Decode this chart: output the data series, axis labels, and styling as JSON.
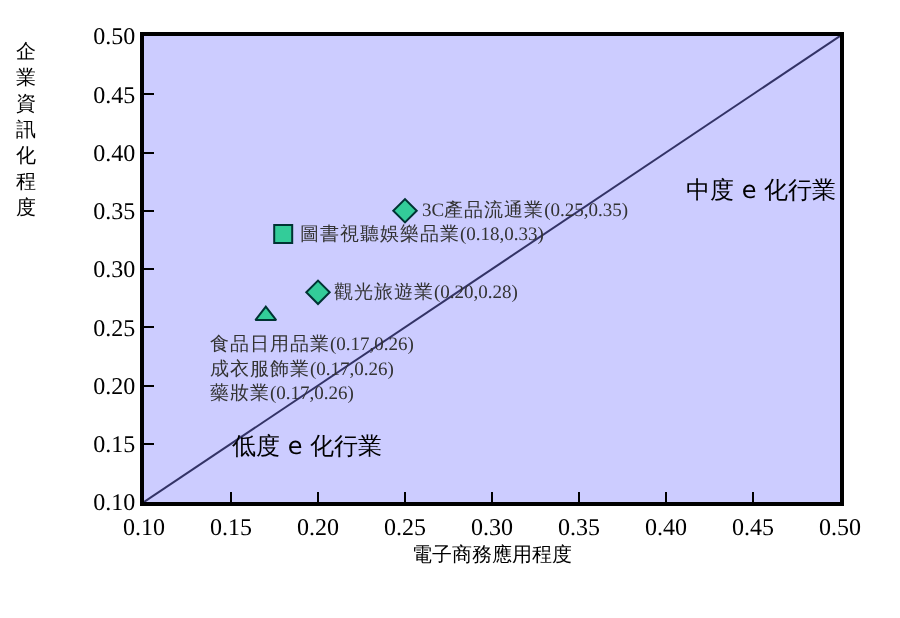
{
  "chart_data": {
    "type": "scatter",
    "xlabel": "電子商務應用程度",
    "ylabel": "企業資訊化程度",
    "xlim": [
      0.1,
      0.5
    ],
    "xticks": [
      {
        "value": 0.1,
        "label": "0.10"
      },
      {
        "value": 0.15,
        "label": "0.15"
      },
      {
        "value": 0.2,
        "label": "0.20"
      },
      {
        "value": 0.25,
        "label": "0.25"
      },
      {
        "value": 0.3,
        "label": "0.30"
      },
      {
        "value": 0.35,
        "label": "0.35"
      },
      {
        "value": 0.4,
        "label": "0.40"
      },
      {
        "value": 0.45,
        "label": "0.45"
      },
      {
        "value": 0.5,
        "label": "0.50"
      }
    ],
    "ylim": [
      0.1,
      0.5
    ],
    "yticks": [
      {
        "value": 0.1,
        "label": "0.10"
      },
      {
        "value": 0.15,
        "label": "0.15"
      },
      {
        "value": 0.2,
        "label": "0.20"
      },
      {
        "value": 0.25,
        "label": "0.25"
      },
      {
        "value": 0.3,
        "label": "0.30"
      },
      {
        "value": 0.35,
        "label": "0.35"
      },
      {
        "value": 0.4,
        "label": "0.40"
      },
      {
        "value": 0.45,
        "label": "0.45"
      },
      {
        "value": 0.5,
        "label": "0.50"
      }
    ],
    "grid": false,
    "series": [
      {
        "type": "line",
        "color": "#333366",
        "x": [
          0.1,
          0.5
        ],
        "values": [
          0.1,
          0.5
        ],
        "marker": "none"
      },
      {
        "color": "#33cc99",
        "marker": "diamond",
        "x": [
          0.25
        ],
        "values": [
          0.35
        ]
      },
      {
        "color": "#33cc99",
        "marker": "square",
        "x": [
          0.18
        ],
        "values": [
          0.33
        ]
      },
      {
        "color": "#33cc99",
        "marker": "diamond",
        "x": [
          0.2
        ],
        "values": [
          0.28
        ]
      },
      {
        "color": "#33cc99",
        "marker": "triangle",
        "x": [
          0.17
        ],
        "values": [
          0.26
        ]
      }
    ],
    "annotations": [
      {
        "text": "3C產品流通業(0.25,0.35)",
        "x": 0.25,
        "y": 0.35
      },
      {
        "text": "圖書視聽娛樂品業(0.18,0.33)",
        "x": 0.18,
        "y": 0.33
      },
      {
        "text": "觀光旅遊業(0.20,0.28)",
        "x": 0.2,
        "y": 0.28
      },
      {
        "text": "食品日用品業(0.17,0.26)\n成衣服飾業(0.17,0.26)\n藥妝業(0.17,0.26)",
        "x": 0.17,
        "y": 0.26
      },
      "中度 e 化行業",
      "低度 e 化行業"
    ]
  }
}
